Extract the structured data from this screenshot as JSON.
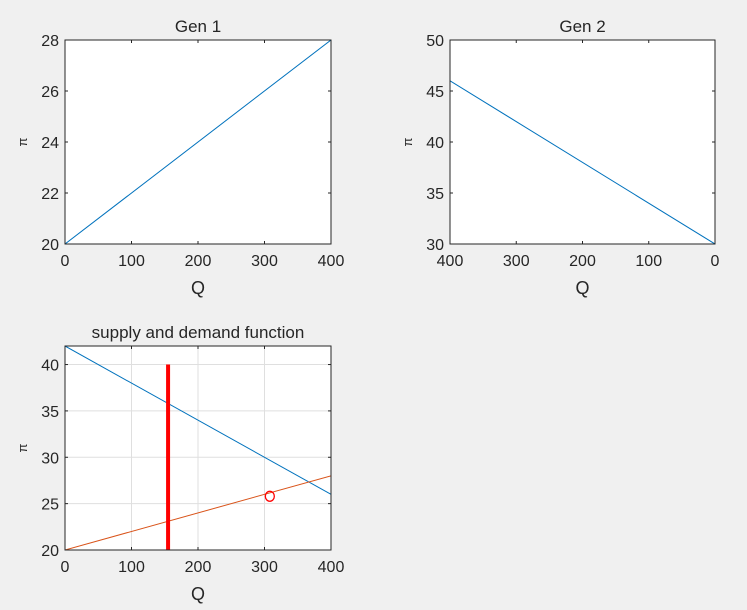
{
  "chart_data": [
    {
      "type": "line",
      "title": "Gen 1",
      "xlabel": "Q",
      "ylabel": "π",
      "xlim": [
        0,
        400
      ],
      "ylim": [
        20,
        28
      ],
      "x_reversed": false,
      "grid": false,
      "xticks": [
        0,
        100,
        200,
        300,
        400
      ],
      "yticks": [
        20,
        22,
        24,
        26,
        28
      ],
      "series": [
        {
          "x": [
            0,
            400
          ],
          "y": [
            20,
            28
          ],
          "color": "#0072BD"
        }
      ]
    },
    {
      "type": "line",
      "title": "Gen 2",
      "xlabel": "Q",
      "ylabel": "π",
      "xlim": [
        0,
        400
      ],
      "ylim": [
        30,
        50
      ],
      "x_reversed": true,
      "grid": false,
      "xticks": [
        400,
        300,
        200,
        100,
        0
      ],
      "yticks": [
        30,
        35,
        40,
        45,
        50
      ],
      "series": [
        {
          "x": [
            400,
            0
          ],
          "y": [
            46,
            30
          ],
          "color": "#0072BD"
        }
      ]
    },
    {
      "type": "line",
      "title": "supply and demand function",
      "xlabel": "Q",
      "ylabel": "π",
      "xlim": [
        0,
        400
      ],
      "ylim": [
        20,
        42
      ],
      "x_reversed": false,
      "grid": true,
      "xticks": [
        0,
        100,
        200,
        300,
        400
      ],
      "yticks": [
        20,
        25,
        30,
        35,
        40
      ],
      "series": [
        {
          "x": [
            0,
            400
          ],
          "y": [
            42,
            26
          ],
          "color": "#0072BD"
        },
        {
          "x": [
            0,
            400
          ],
          "y": [
            20,
            28
          ],
          "color": "#D95319"
        }
      ],
      "vlines": [
        {
          "x": 155,
          "y": [
            20,
            40
          ],
          "color": "#FF0000"
        }
      ],
      "markers": [
        {
          "x": 308,
          "y": 25.8,
          "symbol": "o",
          "color": "#FF0000"
        }
      ]
    }
  ]
}
